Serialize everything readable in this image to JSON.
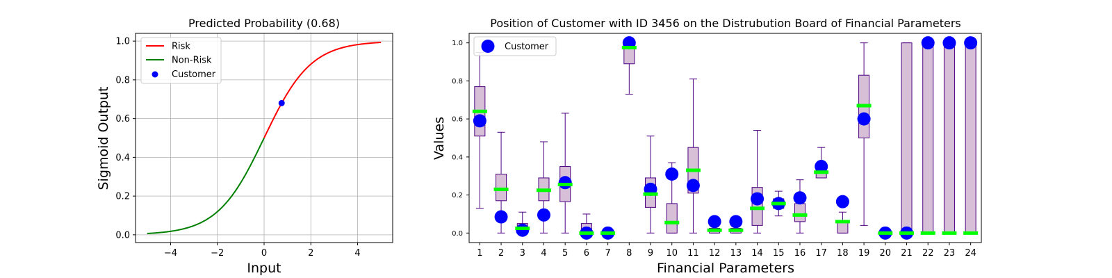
{
  "chart_data": [
    {
      "type": "line",
      "title": "Predicted Probability (0.68)",
      "xlabel": "Input",
      "ylabel": "Sigmoid Output",
      "xlim": [
        -5.5,
        5.5
      ],
      "ylim": [
        -0.04,
        1.04
      ],
      "x_ticks": [
        -4,
        -2,
        0,
        2,
        4
      ],
      "x_tick_labels": [
        "−4",
        "−2",
        "0",
        "2",
        "4"
      ],
      "y_ticks": [
        0.0,
        0.2,
        0.4,
        0.6,
        0.8,
        1.0
      ],
      "y_tick_labels": [
        "0.0",
        "0.2",
        "0.4",
        "0.6",
        "0.8",
        "1.0"
      ],
      "grid": true,
      "legend_position": "top-left",
      "series": [
        {
          "name": "Risk",
          "color": "#ff0000",
          "function": "sigmoid",
          "x_range": [
            0,
            5
          ]
        },
        {
          "name": "Non-Risk",
          "color": "#008000",
          "function": "sigmoid",
          "x_range": [
            -5,
            0
          ]
        },
        {
          "name": "Customer",
          "kind": "point",
          "color": "#0000ff",
          "x": 0.75,
          "y": 0.68
        }
      ]
    },
    {
      "type": "box",
      "title": "Position of Customer with ID 3456 on the Distrubution Board of Financial Parameters",
      "xlabel": "Financial Parameters",
      "ylabel": "Values",
      "ylim": [
        -0.05,
        1.05
      ],
      "y_ticks": [
        0.0,
        0.2,
        0.4,
        0.6,
        0.8,
        1.0
      ],
      "y_tick_labels": [
        "0.0",
        "0.2",
        "0.4",
        "0.6",
        "0.8",
        "1.0"
      ],
      "categories": [
        "1",
        "2",
        "3",
        "4",
        "5",
        "6",
        "7",
        "8",
        "9",
        "10",
        "11",
        "12",
        "13",
        "14",
        "15",
        "16",
        "17",
        "18",
        "19",
        "20",
        "21",
        "22",
        "23",
        "24"
      ],
      "legend_position": "top-left",
      "legend": [
        {
          "name": "Customer",
          "color": "#0000ff"
        }
      ],
      "box_face_color": "#d8bfd8",
      "box_edge_color": "#4b0082",
      "median_color": "#00ff00",
      "customer_color": "#0000ff",
      "boxes": [
        {
          "whislo": 0.13,
          "q1": 0.51,
          "med": 0.64,
          "q3": 0.77,
          "whishi": 0.95,
          "customer": 0.59
        },
        {
          "whislo": 0.0,
          "q1": 0.17,
          "med": 0.23,
          "q3": 0.31,
          "whishi": 0.53,
          "customer": 0.085
        },
        {
          "whislo": 0.0,
          "q1": 0.01,
          "med": 0.025,
          "q3": 0.05,
          "whishi": 0.11,
          "customer": 0.015
        },
        {
          "whislo": 0.0,
          "q1": 0.17,
          "med": 0.225,
          "q3": 0.29,
          "whishi": 0.48,
          "customer": 0.095
        },
        {
          "whislo": 0.0,
          "q1": 0.165,
          "med": 0.255,
          "q3": 0.35,
          "whishi": 0.63,
          "customer": 0.265
        },
        {
          "whislo": 0.0,
          "q1": 0.0,
          "med": 0.0,
          "q3": 0.05,
          "whishi": 0.1,
          "customer": 0.0
        },
        {
          "whislo": 0.0,
          "q1": 0.0,
          "med": 0.0,
          "q3": 0.0,
          "whishi": 0.0,
          "customer": 0.0
        },
        {
          "whislo": 0.73,
          "q1": 0.89,
          "med": 0.975,
          "q3": 1.0,
          "whishi": 1.0,
          "customer": 1.0
        },
        {
          "whislo": 0.0,
          "q1": 0.135,
          "med": 0.205,
          "q3": 0.29,
          "whishi": 0.51,
          "customer": 0.23
        },
        {
          "whislo": 0.0,
          "q1": 0.0,
          "med": 0.055,
          "q3": 0.155,
          "whishi": 0.37,
          "customer": 0.31
        },
        {
          "whislo": 0.0,
          "q1": 0.21,
          "med": 0.33,
          "q3": 0.45,
          "whishi": 0.81,
          "customer": 0.25
        },
        {
          "whislo": 0.0,
          "q1": 0.0,
          "med": 0.015,
          "q3": 0.025,
          "whishi": 0.06,
          "customer": 0.06
        },
        {
          "whislo": 0.0,
          "q1": 0.0,
          "med": 0.015,
          "q3": 0.025,
          "whishi": 0.06,
          "customer": 0.06
        },
        {
          "whislo": 0.0,
          "q1": 0.04,
          "med": 0.13,
          "q3": 0.24,
          "whishi": 0.54,
          "customer": 0.18
        },
        {
          "whislo": 0.09,
          "q1": 0.13,
          "med": 0.155,
          "q3": 0.18,
          "whishi": 0.22,
          "customer": 0.155
        },
        {
          "whislo": 0.0,
          "q1": 0.06,
          "med": 0.095,
          "q3": 0.155,
          "whishi": 0.28,
          "customer": 0.185
        },
        {
          "whislo": 0.29,
          "q1": 0.29,
          "med": 0.32,
          "q3": 0.35,
          "whishi": 0.45,
          "customer": 0.35
        },
        {
          "whislo": 0.0,
          "q1": 0.0,
          "med": 0.06,
          "q3": 0.06,
          "whishi": 0.11,
          "customer": 0.165
        },
        {
          "whislo": 0.04,
          "q1": 0.5,
          "med": 0.67,
          "q3": 0.83,
          "whishi": 1.0,
          "customer": 0.6
        },
        {
          "whislo": 0.0,
          "q1": 0.0,
          "med": 0.0,
          "q3": 0.0,
          "whishi": 0.0,
          "customer": 0.0
        },
        {
          "whislo": 0.0,
          "q1": 0.0,
          "med": 0.0,
          "q3": 1.0,
          "whishi": 1.0,
          "customer": 0.0
        },
        {
          "whislo": 0.0,
          "q1": 0.0,
          "med": 0.0,
          "q3": 1.0,
          "whishi": 1.0,
          "customer": 1.0
        },
        {
          "whislo": 0.0,
          "q1": 0.0,
          "med": 0.0,
          "q3": 1.0,
          "whishi": 1.0,
          "customer": 1.0
        },
        {
          "whislo": 0.0,
          "q1": 0.0,
          "med": 0.0,
          "q3": 1.0,
          "whishi": 1.0,
          "customer": 1.0
        }
      ]
    }
  ]
}
